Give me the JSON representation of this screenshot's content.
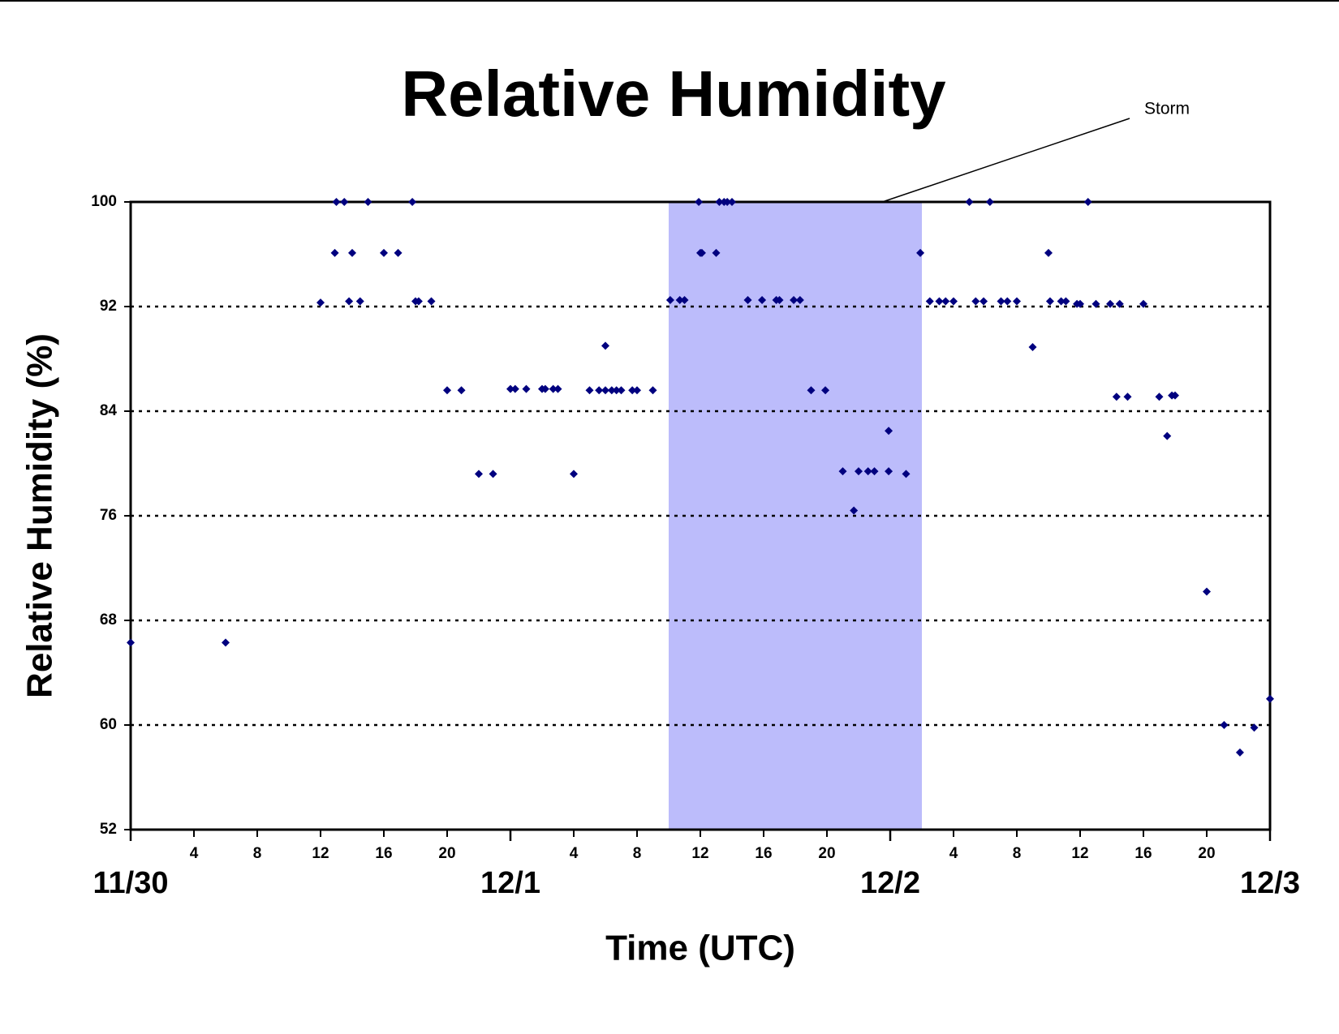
{
  "chart_data": {
    "type": "scatter",
    "title": "Relative Humidity",
    "x_label": "Time (UTC)",
    "y_label": "Relative Humidity (%)",
    "color": "#00007f",
    "grid": true,
    "xlim": [
      0,
      72
    ],
    "ylim": [
      52,
      100
    ],
    "yticks": [
      52,
      60,
      68,
      76,
      84,
      92,
      100
    ],
    "xticks": [
      {
        "value": 4,
        "label": "4"
      },
      {
        "value": 8,
        "label": "8"
      },
      {
        "value": 12,
        "label": "12"
      },
      {
        "value": 16,
        "label": "16"
      },
      {
        "value": 20,
        "label": "20"
      },
      {
        "value": 28,
        "label": "4"
      },
      {
        "value": 32,
        "label": "8"
      },
      {
        "value": 36,
        "label": "12"
      },
      {
        "value": 40,
        "label": "16"
      },
      {
        "value": 44,
        "label": "20"
      },
      {
        "value": 52,
        "label": "4"
      },
      {
        "value": 56,
        "label": "8"
      },
      {
        "value": 60,
        "label": "12"
      },
      {
        "value": 64,
        "label": "16"
      },
      {
        "value": 68,
        "label": "20"
      }
    ],
    "xday_ticks": [
      {
        "value": 0,
        "label": "11/30"
      },
      {
        "value": 24,
        "label": "12/1"
      },
      {
        "value": 48,
        "label": "12/2"
      },
      {
        "value": 72,
        "label": "12/3"
      }
    ],
    "shaded_region": {
      "x": [
        34,
        50
      ],
      "color": "#bcbcfb",
      "label": "Storm"
    },
    "x": [
      0,
      6.0,
      12.0,
      13.0,
      13.5,
      12.9,
      14.0,
      13.8,
      14.5,
      15.0,
      16.0,
      16.9,
      17.8,
      18.0,
      18.2,
      19.0,
      20.0,
      20.9,
      22.0,
      22.9,
      24.0,
      24.3,
      25.0,
      26.0,
      26.2,
      26.7,
      27.0,
      28.0,
      29.0,
      29.6,
      30.0,
      30.0,
      30.4,
      30.7,
      31.0,
      31.7,
      32.0,
      33.0,
      34.1,
      34.7,
      35.0,
      35.9,
      36.0,
      36.1,
      37.0,
      37.2,
      37.5,
      37.7,
      38.0,
      39.0,
      39.9,
      40.8,
      41.0,
      41.9,
      42.3,
      43.0,
      43.9,
      45.0,
      45.7,
      46.0,
      46.6,
      47.0,
      47.9,
      47.9,
      49.0,
      49.9,
      50.5,
      51.1,
      51.5,
      52.0,
      53.0,
      53.4,
      53.9,
      54.3,
      55.0,
      55.4,
      56.0,
      57.0,
      58.0,
      58.1,
      58.8,
      59.1,
      59.8,
      60.0,
      60.5,
      61.0,
      61.9,
      62.5,
      62.3,
      63.0,
      64.0,
      65.0,
      65.8,
      66.0,
      65.5,
      68.0,
      69.1,
      70.1,
      71.0,
      72.0
    ],
    "values": [
      66.3,
      66.3,
      92.3,
      100,
      100,
      96.1,
      96.1,
      92.4,
      92.4,
      100,
      96.1,
      96.1,
      100,
      92.4,
      92.4,
      92.4,
      85.6,
      85.6,
      79.2,
      79.2,
      85.7,
      85.7,
      85.7,
      85.7,
      85.7,
      85.7,
      85.7,
      79.2,
      85.6,
      85.6,
      85.6,
      89,
      85.6,
      85.6,
      85.6,
      85.6,
      85.6,
      85.6,
      92.5,
      92.5,
      92.5,
      100,
      96.1,
      96.1,
      96.1,
      100,
      100,
      100,
      100,
      92.5,
      92.5,
      92.5,
      92.5,
      92.5,
      92.5,
      85.6,
      85.6,
      79.4,
      76.4,
      79.4,
      79.4,
      79.4,
      82.5,
      79.4,
      79.2,
      96.1,
      92.4,
      92.4,
      92.4,
      92.4,
      100,
      92.4,
      92.4,
      100,
      92.4,
      92.4,
      92.4,
      88.9,
      96.1,
      92.4,
      92.4,
      92.4,
      92.2,
      92.2,
      100,
      92.2,
      92.2,
      92.2,
      85.1,
      85.1,
      92.2,
      85.1,
      85.2,
      85.2,
      82.1,
      70.2,
      60,
      57.9,
      59.8,
      62
    ]
  }
}
